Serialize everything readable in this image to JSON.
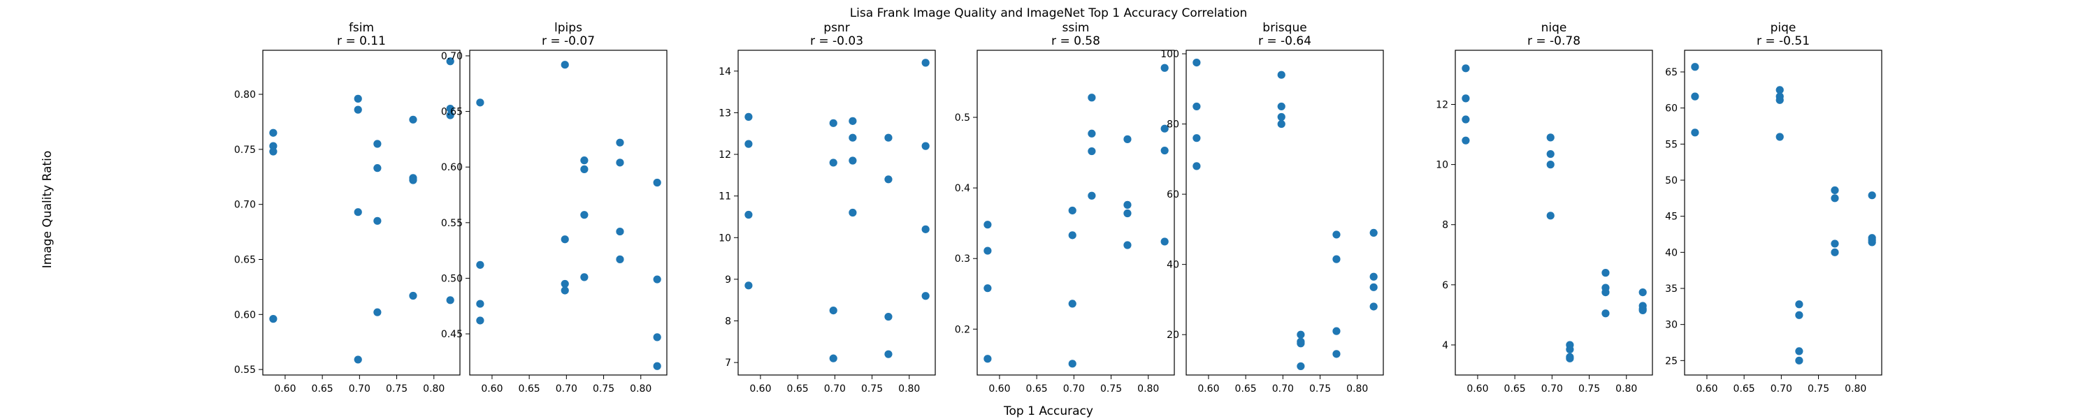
{
  "figure": {
    "suptitle": "Lisa Frank Image Quality and ImageNet Top 1 Accuracy Correlation",
    "xlabel": "Top 1 Accuracy",
    "ylabel": "Image Quality Ratio",
    "point_color": "#1f77b4"
  },
  "chart_data": [
    {
      "type": "scatter",
      "title": "fsim",
      "subtitle": "r = 0.11",
      "xlim": [
        0.57,
        0.835
      ],
      "ylim": [
        0.545,
        0.84
      ],
      "xticks": [
        0.6,
        0.65,
        0.7,
        0.75,
        0.8
      ],
      "yticks": [
        0.55,
        0.6,
        0.65,
        0.7,
        0.75,
        0.8
      ],
      "x": [
        0.584,
        0.584,
        0.584,
        0.584,
        0.698,
        0.698,
        0.698,
        0.698,
        0.724,
        0.724,
        0.724,
        0.724,
        0.772,
        0.772,
        0.772,
        0.772,
        0.822,
        0.822,
        0.822,
        0.822
      ],
      "y": [
        0.765,
        0.753,
        0.748,
        0.596,
        0.796,
        0.786,
        0.693,
        0.559,
        0.755,
        0.733,
        0.685,
        0.602,
        0.777,
        0.724,
        0.722,
        0.617,
        0.83,
        0.787,
        0.781,
        0.613
      ]
    },
    {
      "type": "scatter",
      "title": "lpips",
      "subtitle": "r = -0.07",
      "xlim": [
        0.57,
        0.835
      ],
      "ylim": [
        0.413,
        0.705
      ],
      "xticks": [
        0.6,
        0.65,
        0.7,
        0.75,
        0.8
      ],
      "yticks": [
        0.45,
        0.5,
        0.55,
        0.6,
        0.65,
        0.7
      ],
      "x": [
        0.584,
        0.584,
        0.584,
        0.584,
        0.698,
        0.698,
        0.698,
        0.698,
        0.724,
        0.724,
        0.724,
        0.724,
        0.772,
        0.772,
        0.772,
        0.772,
        0.822,
        0.822,
        0.822,
        0.822
      ],
      "y": [
        0.658,
        0.512,
        0.477,
        0.462,
        0.692,
        0.535,
        0.495,
        0.489,
        0.606,
        0.598,
        0.557,
        0.501,
        0.622,
        0.604,
        0.542,
        0.517,
        0.586,
        0.499,
        0.447,
        0.421
      ]
    },
    {
      "type": "scatter",
      "title": "psnr",
      "subtitle": "r = -0.03",
      "xlim": [
        0.57,
        0.835
      ],
      "ylim": [
        6.7,
        14.5
      ],
      "xticks": [
        0.6,
        0.65,
        0.7,
        0.75,
        0.8
      ],
      "yticks": [
        7,
        8,
        9,
        10,
        11,
        12,
        13,
        14
      ],
      "x": [
        0.584,
        0.584,
        0.584,
        0.584,
        0.698,
        0.698,
        0.698,
        0.698,
        0.724,
        0.724,
        0.724,
        0.724,
        0.772,
        0.772,
        0.772,
        0.772,
        0.822,
        0.822,
        0.822,
        0.822
      ],
      "y": [
        12.9,
        12.25,
        10.55,
        8.85,
        12.75,
        11.8,
        8.25,
        7.1,
        12.8,
        12.4,
        11.85,
        10.6,
        12.4,
        11.4,
        8.1,
        7.2,
        14.2,
        12.2,
        10.2,
        8.6
      ]
    },
    {
      "type": "scatter",
      "title": "ssim",
      "subtitle": "r = 0.58",
      "xlim": [
        0.57,
        0.835
      ],
      "ylim": [
        0.135,
        0.595
      ],
      "xticks": [
        0.6,
        0.65,
        0.7,
        0.75,
        0.8
      ],
      "yticks": [
        0.2,
        0.3,
        0.4,
        0.5
      ],
      "x": [
        0.584,
        0.584,
        0.584,
        0.584,
        0.698,
        0.698,
        0.698,
        0.698,
        0.724,
        0.724,
        0.724,
        0.724,
        0.772,
        0.772,
        0.772,
        0.772,
        0.822,
        0.822,
        0.822,
        0.822
      ],
      "y": [
        0.348,
        0.311,
        0.258,
        0.158,
        0.368,
        0.333,
        0.236,
        0.151,
        0.528,
        0.477,
        0.452,
        0.389,
        0.469,
        0.376,
        0.364,
        0.319,
        0.57,
        0.484,
        0.453,
        0.324
      ]
    },
    {
      "type": "scatter",
      "title": "brisque",
      "subtitle": "r = -0.64",
      "xlim": [
        0.57,
        0.835
      ],
      "ylim": [
        8.5,
        101
      ],
      "xticks": [
        0.6,
        0.65,
        0.7,
        0.75,
        0.8
      ],
      "yticks": [
        20,
        40,
        60,
        80,
        100
      ],
      "x": [
        0.584,
        0.584,
        0.584,
        0.584,
        0.698,
        0.698,
        0.698,
        0.698,
        0.724,
        0.724,
        0.724,
        0.724,
        0.772,
        0.772,
        0.772,
        0.772,
        0.822,
        0.822,
        0.822,
        0.822
      ],
      "y": [
        97.5,
        85.0,
        76.0,
        68.0,
        94.0,
        85.0,
        82.0,
        80.0,
        20.0,
        18.0,
        17.5,
        11.0,
        48.5,
        41.5,
        21.0,
        14.5,
        49.0,
        36.5,
        33.5,
        28.0
      ]
    },
    {
      "type": "scatter",
      "title": "niqe",
      "subtitle": "r = -0.78",
      "xlim": [
        0.57,
        0.835
      ],
      "ylim": [
        3.0,
        13.8
      ],
      "xticks": [
        0.6,
        0.65,
        0.7,
        0.75,
        0.8
      ],
      "yticks": [
        4,
        6,
        8,
        10,
        12
      ],
      "x": [
        0.584,
        0.584,
        0.584,
        0.584,
        0.698,
        0.698,
        0.698,
        0.698,
        0.724,
        0.724,
        0.724,
        0.724,
        0.772,
        0.772,
        0.772,
        0.772,
        0.822,
        0.822,
        0.822,
        0.822
      ],
      "y": [
        13.2,
        12.2,
        11.5,
        10.8,
        10.9,
        10.35,
        10.0,
        8.3,
        4.0,
        3.85,
        3.6,
        3.55,
        6.4,
        5.9,
        5.75,
        5.05,
        5.75,
        5.3,
        5.2,
        5.15
      ]
    },
    {
      "type": "scatter",
      "title": "piqe",
      "subtitle": "r = -0.51",
      "xlim": [
        0.57,
        0.835
      ],
      "ylim": [
        23.0,
        68.0
      ],
      "xticks": [
        0.6,
        0.65,
        0.7,
        0.75,
        0.8
      ],
      "yticks": [
        25,
        30,
        35,
        40,
        45,
        50,
        55,
        60,
        65
      ],
      "x": [
        0.584,
        0.584,
        0.584,
        0.698,
        0.698,
        0.698,
        0.698,
        0.724,
        0.724,
        0.724,
        0.724,
        0.772,
        0.772,
        0.772,
        0.772,
        0.822,
        0.822,
        0.822,
        0.822
      ],
      "y": [
        65.7,
        61.6,
        56.6,
        62.5,
        61.6,
        61.1,
        56.0,
        32.8,
        31.3,
        26.3,
        25.0,
        48.6,
        47.5,
        41.2,
        40.0,
        47.9,
        42.0,
        41.7,
        41.4
      ]
    }
  ]
}
